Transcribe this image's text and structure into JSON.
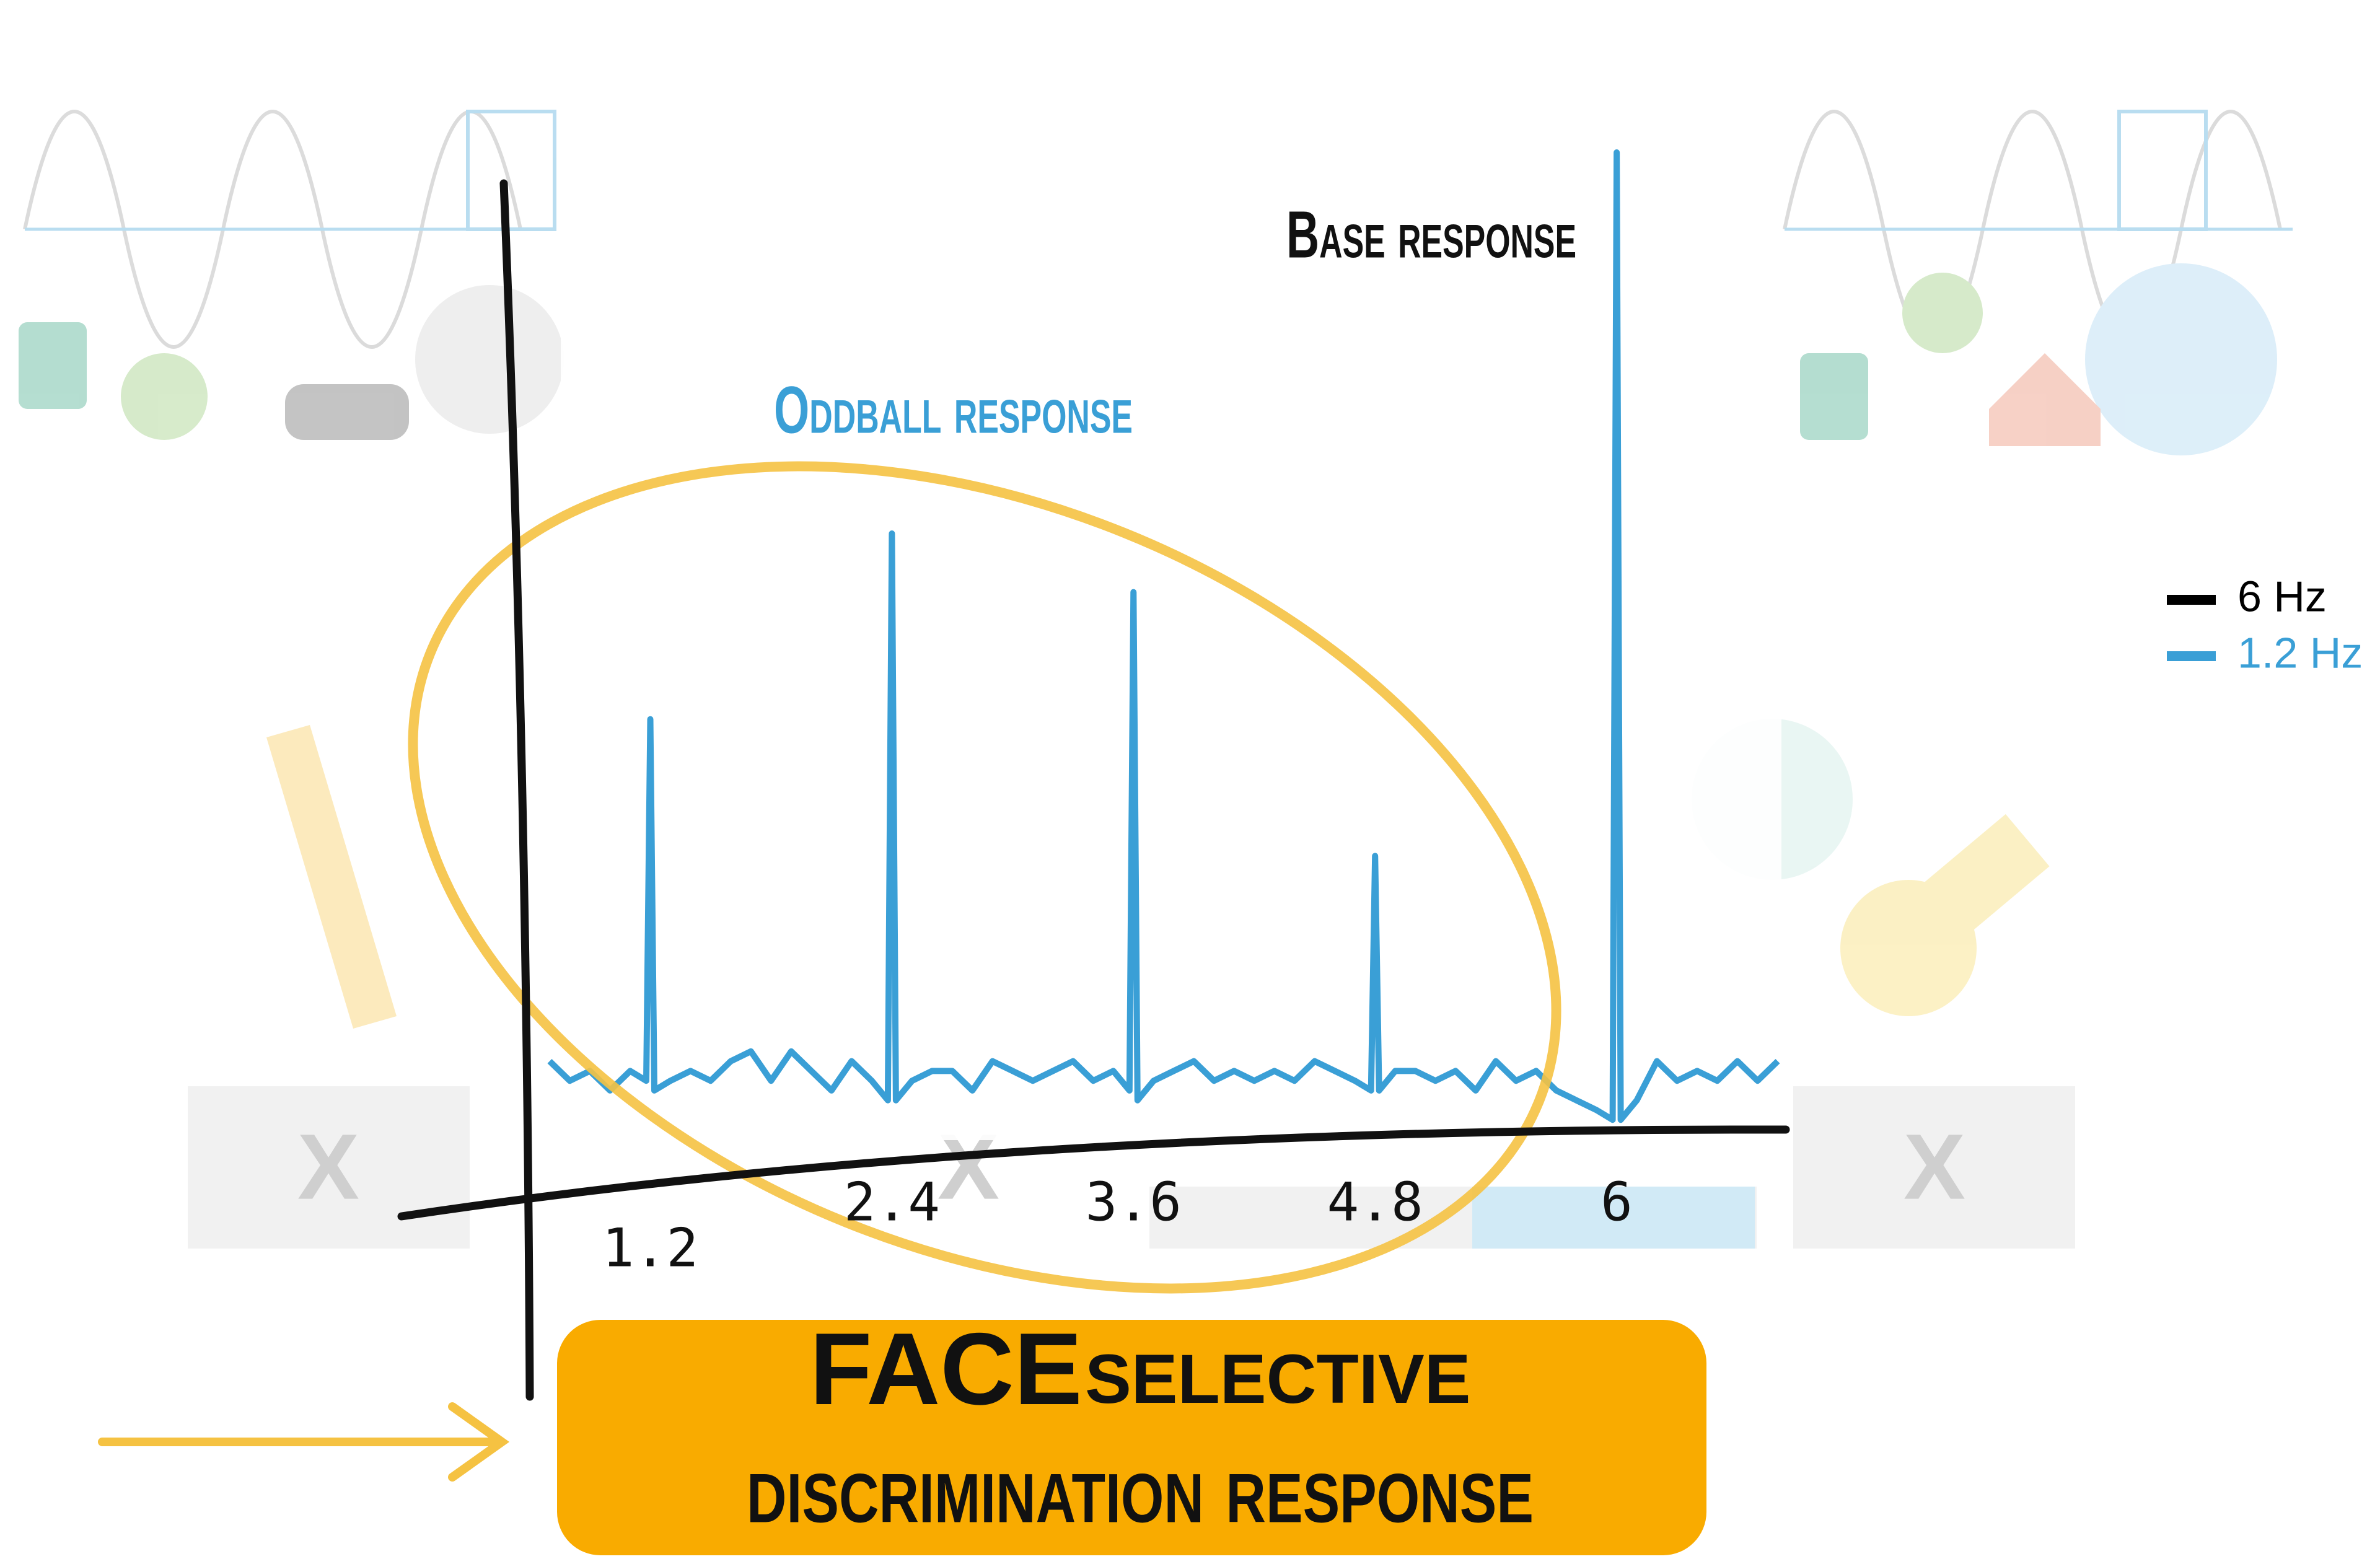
{
  "chart_data": {
    "type": "line",
    "x": [
      0.7,
      0.8,
      0.9,
      1.0,
      1.1,
      1.18,
      1.2,
      1.22,
      1.3,
      1.4,
      1.5,
      1.6,
      1.7,
      1.8,
      1.9,
      2.0,
      2.1,
      2.2,
      2.3,
      2.38,
      2.4,
      2.42,
      2.5,
      2.6,
      2.7,
      2.8,
      2.9,
      3.0,
      3.1,
      3.2,
      3.3,
      3.4,
      3.5,
      3.58,
      3.6,
      3.62,
      3.7,
      3.8,
      3.9,
      4.0,
      4.1,
      4.2,
      4.3,
      4.4,
      4.5,
      4.6,
      4.7,
      4.78,
      4.8,
      4.82,
      4.9,
      5.0,
      5.1,
      5.2,
      5.3,
      5.4,
      5.5,
      5.6,
      5.7,
      5.8,
      5.9,
      5.98,
      6.0,
      6.02,
      6.1,
      6.2,
      6.3,
      6.4,
      6.5,
      6.6,
      6.7,
      6.8
    ],
    "values": [
      7,
      5,
      6,
      4,
      6,
      5,
      42,
      4,
      5,
      6,
      5,
      7,
      8,
      5,
      8,
      6,
      4,
      7,
      5,
      3,
      61,
      3,
      5,
      6,
      6,
      4,
      7,
      6,
      5,
      6,
      7,
      5,
      6,
      4,
      55,
      3,
      5,
      6,
      7,
      5,
      6,
      5,
      6,
      5,
      7,
      6,
      5,
      4,
      28,
      4,
      6,
      6,
      5,
      6,
      4,
      7,
      5,
      6,
      4,
      3,
      2,
      1,
      100,
      1,
      3,
      7,
      5,
      6,
      5,
      7,
      5,
      7
    ],
    "color": "#3a9fd6",
    "xlim": [
      0.7,
      6.8
    ],
    "ylim": [
      0,
      100
    ],
    "xticks": [
      1.2,
      2.4,
      3.6,
      4.8,
      6
    ],
    "legend": [
      {
        "name": "6 Hz",
        "color": "#000000"
      },
      {
        "name": "1.2 Hz",
        "color": "#3a9fd6"
      }
    ],
    "annotations": {
      "base": "Base response",
      "oddball": "Oddball response"
    },
    "callout": {
      "emphasis": "FACE",
      "line1": "selective",
      "line2": "discrimination response"
    }
  },
  "background": {
    "boxes": [
      "X",
      "X",
      "X"
    ]
  }
}
